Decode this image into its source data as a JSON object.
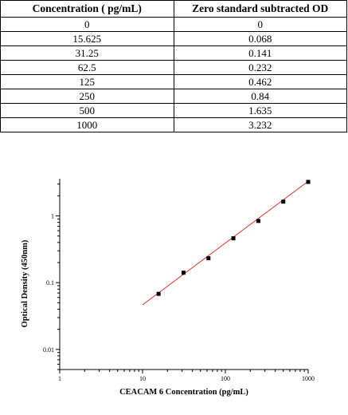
{
  "table": {
    "headers": [
      "Concentration ( pg/mL)",
      "Zero standard subtracted OD"
    ],
    "rows": [
      [
        "0",
        "0"
      ],
      [
        "15.625",
        "0.068"
      ],
      [
        "31.25",
        "0.141"
      ],
      [
        "62.5",
        "0.232"
      ],
      [
        "125",
        "0.462"
      ],
      [
        "250",
        "0.84"
      ],
      [
        "500",
        "1.635"
      ],
      [
        "1000",
        "3.232"
      ]
    ]
  },
  "chart_data": {
    "type": "scatter",
    "xlabel": "CEACAM 6 Concentration (pg/mL)",
    "ylabel": "Optical Density (450nm)",
    "xscale": "log",
    "yscale": "log",
    "xlim": [
      1,
      1000
    ],
    "ylim": [
      0.005,
      3.6
    ],
    "x_ticks": [
      {
        "value": 1,
        "label": "1"
      },
      {
        "value": 10,
        "label": "10"
      },
      {
        "value": 100,
        "label": "100"
      },
      {
        "value": 1000,
        "label": "1000"
      }
    ],
    "y_ticks": [
      {
        "value": 0.01,
        "label": "0.01"
      },
      {
        "value": 0.1,
        "label": "0.1"
      },
      {
        "value": 1,
        "label": "1"
      }
    ],
    "points": [
      {
        "x": 15.625,
        "y": 0.068
      },
      {
        "x": 31.25,
        "y": 0.141
      },
      {
        "x": 62.5,
        "y": 0.232
      },
      {
        "x": 125,
        "y": 0.462
      },
      {
        "x": 250,
        "y": 0.84
      },
      {
        "x": 500,
        "y": 1.635
      },
      {
        "x": 1000,
        "y": 3.232
      }
    ],
    "fit_line": {
      "x_start": 10,
      "x_end": 1000,
      "y_start": 0.0465,
      "y_end": 3.3
    },
    "grid": false,
    "colors": {
      "points": "#000000",
      "fit_line": "#e8302c",
      "axes": "#000000"
    }
  }
}
